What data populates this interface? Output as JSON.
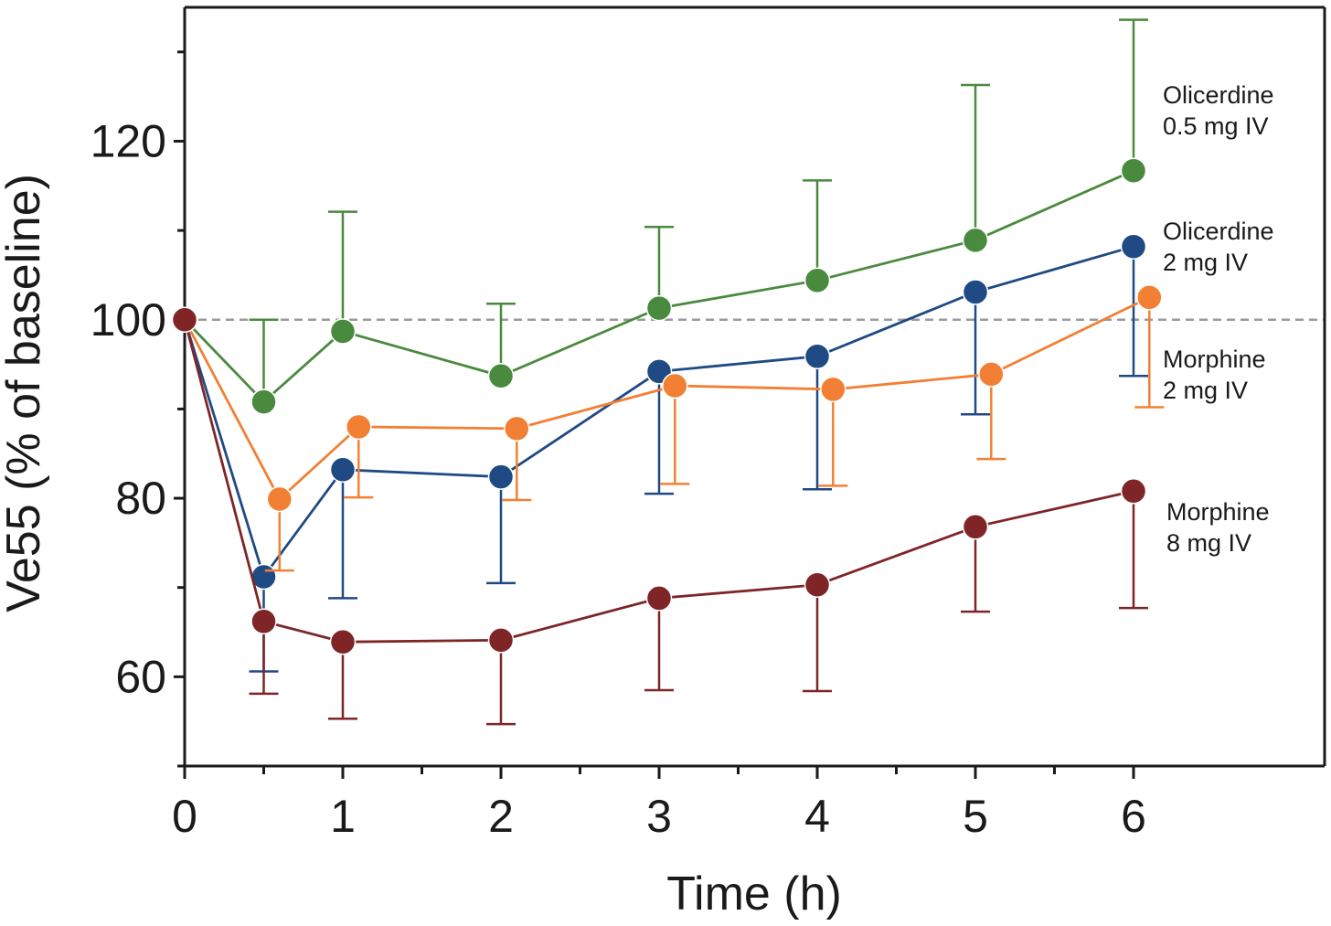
{
  "chart_data": {
    "type": "line",
    "title": "",
    "xlabel": "Time (h)",
    "ylabel": "Ve55 (% of baseline)",
    "xlim": [
      0,
      7.1
    ],
    "ylim": [
      50,
      135
    ],
    "x_ticks": [
      0,
      1,
      2,
      3,
      4,
      5,
      6
    ],
    "x_tick_labels": [
      "0",
      "1",
      "2",
      "3",
      "4",
      "5",
      "6"
    ],
    "y_ticks": [
      60,
      80,
      100,
      120
    ],
    "y_tick_labels": [
      "60",
      "80",
      "100",
      "120"
    ],
    "reference_line": {
      "y": 100,
      "style": "dashed",
      "color": "#9a9a9a"
    },
    "error_bars": "one-sided SD",
    "grid": false,
    "legend": "direct labels at right",
    "series": [
      {
        "name": "Olicerdine 0.5 mg IV",
        "label_lines": [
          "Olicerdine",
          "0.5 mg IV"
        ],
        "color": "#4a8a3e",
        "error_direction": "up",
        "x": [
          0,
          0.5,
          1,
          2,
          3,
          4,
          5,
          6
        ],
        "y": [
          100,
          90.8,
          98.7,
          93.7,
          101.3,
          104.4,
          108.9,
          116.7
        ],
        "error": [
          null,
          9.2,
          13.4,
          8.1,
          9.1,
          11.2,
          17.4,
          16.9
        ]
      },
      {
        "name": "Olicerdine 2 mg IV",
        "label_lines": [
          "Olicerdine",
          "2 mg IV"
        ],
        "color": "#1f4a84",
        "error_direction": "down",
        "x": [
          0,
          0.5,
          1,
          2,
          3,
          4,
          5,
          6
        ],
        "y": [
          100,
          71.2,
          83.2,
          82.4,
          94.2,
          95.9,
          103.1,
          108.2
        ],
        "error": [
          null,
          10.6,
          14.4,
          11.9,
          13.7,
          14.9,
          13.7,
          14.5
        ]
      },
      {
        "name": "Morphine 2 mg IV",
        "label_lines": [
          "Morphine",
          "2 mg IV"
        ],
        "color": "#f28034",
        "error_direction": "down",
        "x": [
          0,
          0.6,
          1.1,
          2.1,
          3.1,
          4.1,
          5.1,
          6.1
        ],
        "y": [
          100,
          79.9,
          88.0,
          87.8,
          92.6,
          92.2,
          93.9,
          102.5
        ],
        "error": [
          null,
          8.0,
          7.9,
          8.0,
          11.0,
          10.8,
          9.5,
          12.3
        ]
      },
      {
        "name": "Morphine 8 mg IV",
        "label_lines": [
          "Morphine",
          "8 mg IV"
        ],
        "color": "#7f2527",
        "error_direction": "down",
        "x": [
          0,
          0.5,
          1,
          2,
          3,
          4,
          5,
          6
        ],
        "y": [
          100,
          66.2,
          63.9,
          64.1,
          68.8,
          70.3,
          76.8,
          80.8
        ],
        "error": [
          null,
          8.1,
          8.6,
          9.4,
          10.3,
          11.9,
          9.5,
          13.1
        ]
      }
    ]
  }
}
